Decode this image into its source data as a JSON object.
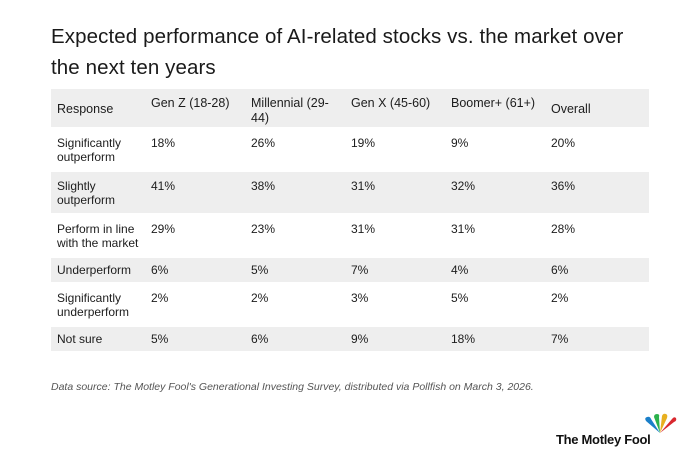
{
  "title": "Expected performance of AI-related stocks vs. the market over the next ten years",
  "table": {
    "headers": [
      "Response",
      "Gen Z (18-28)",
      "Millennial (29-44)",
      "Gen X (45-60)",
      "Boomer+ (61+)",
      "Overall"
    ],
    "rows": [
      [
        "Significantly outperform",
        "18%",
        "26%",
        "19%",
        "9%",
        "20%"
      ],
      [
        "Slightly outperform",
        "41%",
        "38%",
        "31%",
        "32%",
        "36%"
      ],
      [
        "Perform in line with the market",
        "29%",
        "23%",
        "31%",
        "31%",
        "28%"
      ],
      [
        "Underperform",
        "6%",
        "5%",
        "7%",
        "4%",
        "6%"
      ],
      [
        "Significantly underperform",
        "2%",
        "2%",
        "3%",
        "5%",
        "2%"
      ],
      [
        "Not sure",
        "5%",
        "6%",
        "9%",
        "18%",
        "7%"
      ]
    ]
  },
  "source": "Data source: The Motley Fool's Generational Investing Survey, distributed via Pollfish on March 3, 2026.",
  "logo": {
    "text": "The Motley Fool",
    "icon": "jester-hat-icon",
    "colors": [
      "#1a7fc9",
      "#2bb24c",
      "#e8b020",
      "#d9282f"
    ]
  }
}
